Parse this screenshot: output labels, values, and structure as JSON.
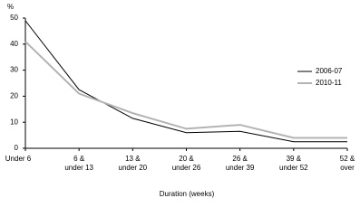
{
  "chart_data": {
    "type": "line",
    "y_label": "%",
    "x_label": "Duration (weeks)",
    "categories": [
      "Under 6",
      "6 &\nunder 13",
      "13 &\nunder 20",
      "20 &\nunder 26",
      "26 &\nunder 39",
      "39 &\nunder 52",
      "52 &\nover"
    ],
    "series": [
      {
        "name": "2006-07",
        "color": "#000000",
        "values": [
          49,
          22.5,
          11.5,
          6,
          6.5,
          2.5,
          2.5
        ]
      },
      {
        "name": "2010-11",
        "color": "#b3b3b3",
        "values": [
          41,
          21,
          13.5,
          7.5,
          9,
          4,
          4
        ]
      }
    ],
    "ylim": [
      0,
      50
    ],
    "yticks": [
      0,
      10,
      20,
      30,
      40,
      50
    ],
    "grid": false,
    "legend": "right"
  }
}
